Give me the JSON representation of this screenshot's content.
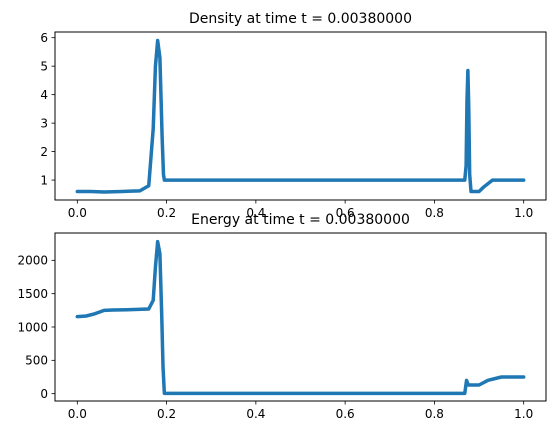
{
  "chart_data": [
    {
      "type": "line",
      "title": "Density at time t =     0.00380000",
      "xlabel": "",
      "ylabel": "",
      "xlim": [
        -0.05,
        1.05
      ],
      "ylim": [
        0.3,
        6.2
      ],
      "xticks": [
        "0.0",
        "0.2",
        "0.4",
        "0.6",
        "0.8",
        "1.0"
      ],
      "xtick_values": [
        0.0,
        0.2,
        0.4,
        0.6,
        0.8,
        1.0
      ],
      "yticks": [
        "1",
        "2",
        "3",
        "4",
        "5",
        "6"
      ],
      "ytick_values": [
        1,
        2,
        3,
        4,
        5,
        6
      ],
      "grid": false,
      "line_color": "#1f77b4",
      "series": [
        {
          "x": [
            0.0,
            0.03,
            0.06,
            0.1,
            0.14,
            0.16,
            0.17,
            0.175,
            0.18,
            0.185,
            0.19,
            0.193,
            0.195,
            0.2,
            0.4,
            0.6,
            0.8,
            0.868,
            0.871,
            0.873,
            0.875,
            0.877,
            0.879,
            0.882,
            0.9,
            0.91,
            0.93,
            0.95,
            0.97,
            1.0
          ],
          "y": [
            0.6,
            0.6,
            0.58,
            0.6,
            0.62,
            0.8,
            2.8,
            5.0,
            5.9,
            5.3,
            2.5,
            1.2,
            1.0,
            1.0,
            1.0,
            1.0,
            1.0,
            1.0,
            1.5,
            3.8,
            4.85,
            3.5,
            1.2,
            0.6,
            0.6,
            0.75,
            1.0,
            1.0,
            1.0,
            1.0
          ]
        }
      ]
    },
    {
      "type": "line",
      "title": "Energy at time t =     0.00380000",
      "xlabel": "",
      "ylabel": "",
      "xlim": [
        -0.05,
        1.05
      ],
      "ylim": [
        -110,
        2410
      ],
      "xticks": [
        "0.0",
        "0.2",
        "0.4",
        "0.6",
        "0.8",
        "1.0"
      ],
      "xtick_values": [
        0.0,
        0.2,
        0.4,
        0.6,
        0.8,
        1.0
      ],
      "yticks": [
        "0",
        "500",
        "1000",
        "1500",
        "2000"
      ],
      "ytick_values": [
        0,
        500,
        1000,
        1500,
        2000
      ],
      "grid": false,
      "line_color": "#1f77b4",
      "series": [
        {
          "x": [
            0.0,
            0.02,
            0.04,
            0.06,
            0.08,
            0.12,
            0.16,
            0.17,
            0.175,
            0.18,
            0.185,
            0.189,
            0.192,
            0.195,
            0.2,
            0.4,
            0.6,
            0.8,
            0.868,
            0.872,
            0.876,
            0.88,
            0.9,
            0.92,
            0.95,
            1.0
          ],
          "y": [
            1155,
            1165,
            1200,
            1250,
            1255,
            1260,
            1270,
            1400,
            1900,
            2280,
            2100,
            1200,
            400,
            5,
            5,
            5,
            5,
            5,
            5,
            200,
            130,
            130,
            130,
            200,
            250,
            250
          ]
        }
      ]
    }
  ]
}
